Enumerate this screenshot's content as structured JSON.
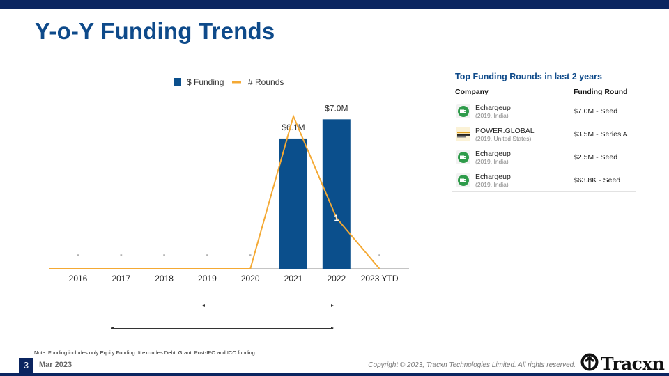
{
  "header": {
    "title": "Y-o-Y Funding Trends"
  },
  "chart_data": {
    "type": "bar",
    "categories": [
      "2016",
      "2017",
      "2018",
      "2019",
      "2020",
      "2021",
      "2022",
      "2023 YTD"
    ],
    "series": [
      {
        "name": "$ Funding",
        "type": "bar",
        "color": "#0b4f8c",
        "values": [
          0,
          0,
          0,
          0,
          0,
          6.1,
          7.0,
          0
        ],
        "labels": [
          "-",
          "-",
          "-",
          "-",
          "-",
          "$6.1M",
          "$7.0M",
          "-"
        ]
      },
      {
        "name": "# Rounds",
        "type": "line",
        "color": "#f4a934",
        "values": [
          0,
          0,
          0,
          0,
          0,
          3,
          1,
          0
        ],
        "labels": [
          "",
          "",
          "",
          "",
          "",
          "",
          "1",
          ""
        ]
      }
    ],
    "ylim_funding": [
      0,
      7.5
    ],
    "ylim_rounds": [
      0,
      3.15
    ],
    "legend": "top-center"
  },
  "table": {
    "title": "Top Funding Rounds in last 2 years",
    "headers": {
      "company": "Company",
      "round": "Funding Round"
    },
    "rows": [
      {
        "name": "Echargeup",
        "meta": "(2019, India)",
        "round": "$7.0M - Seed",
        "logo": "plug-icon"
      },
      {
        "name": "POWER.GLOBAL",
        "meta": "(2019, United States)",
        "round": "$3.5M - Series A",
        "logo": "power-global-logo"
      },
      {
        "name": "Echargeup",
        "meta": "(2019, India)",
        "round": "$2.5M - Seed",
        "logo": "plug-icon"
      },
      {
        "name": "Echargeup",
        "meta": "(2019, India)",
        "round": "$63.8K - Seed",
        "logo": "plug-icon"
      }
    ]
  },
  "footer": {
    "note": "Note: Funding includes only Equity Funding. It excludes Debt, Grant, Post-IPO and ICO funding.",
    "page": "3",
    "date": "Mar 2023",
    "copyright": "Copyright © 2023, Tracxn Technologies Limited. All rights reserved.",
    "brand": "Tracxn"
  },
  "colors": {
    "navy": "#0b2560",
    "title_blue": "#0e4a8a",
    "bar": "#0b4f8c",
    "line": "#f4a934",
    "plug_green": "#2e9b4a"
  }
}
